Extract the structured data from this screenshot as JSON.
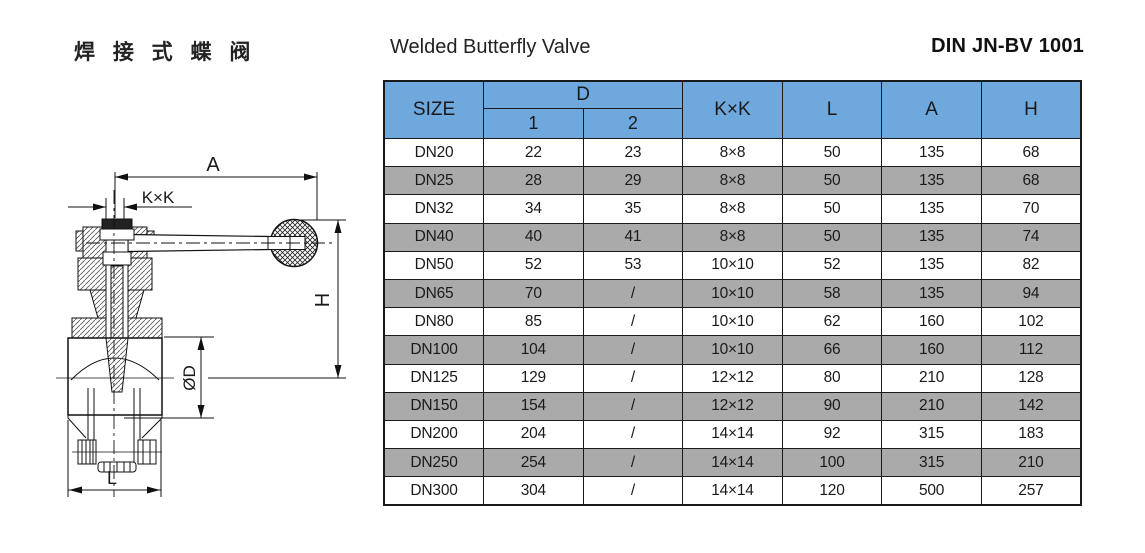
{
  "header": {
    "title_cn": "焊 接 式 蝶 阀",
    "title_en": "Welded Butterfly Valve",
    "model_code": "DIN JN-BV 1001"
  },
  "drawing": {
    "description": "welded-butterfly-valve-cross-section",
    "labels": {
      "a": "A",
      "kxk": "K×K",
      "h": "H",
      "od": "ØD",
      "l": "L"
    }
  },
  "table": {
    "header": {
      "size": "SIZE",
      "d": "D",
      "d1": "1",
      "d2": "2",
      "kxk": "K×K",
      "l": "L",
      "a": "A",
      "h": "H"
    },
    "columns": [
      "size",
      "d1",
      "d2",
      "kxk",
      "l",
      "a",
      "h"
    ],
    "rows": [
      {
        "size": "DN20",
        "d1": "22",
        "d2": "23",
        "kxk": "8×8",
        "l": "50",
        "a": "135",
        "h": "68"
      },
      {
        "size": "DN25",
        "d1": "28",
        "d2": "29",
        "kxk": "8×8",
        "l": "50",
        "a": "135",
        "h": "68"
      },
      {
        "size": "DN32",
        "d1": "34",
        "d2": "35",
        "kxk": "8×8",
        "l": "50",
        "a": "135",
        "h": "70"
      },
      {
        "size": "DN40",
        "d1": "40",
        "d2": "41",
        "kxk": "8×8",
        "l": "50",
        "a": "135",
        "h": "74"
      },
      {
        "size": "DN50",
        "d1": "52",
        "d2": "53",
        "kxk": "10×10",
        "l": "52",
        "a": "135",
        "h": "82"
      },
      {
        "size": "DN65",
        "d1": "70",
        "d2": "/",
        "kxk": "10×10",
        "l": "58",
        "a": "135",
        "h": "94"
      },
      {
        "size": "DN80",
        "d1": "85",
        "d2": "/",
        "kxk": "10×10",
        "l": "62",
        "a": "160",
        "h": "102"
      },
      {
        "size": "DN100",
        "d1": "104",
        "d2": "/",
        "kxk": "10×10",
        "l": "66",
        "a": "160",
        "h": "112"
      },
      {
        "size": "DN125",
        "d1": "129",
        "d2": "/",
        "kxk": "12×12",
        "l": "80",
        "a": "210",
        "h": "128"
      },
      {
        "size": "DN150",
        "d1": "154",
        "d2": "/",
        "kxk": "12×12",
        "l": "90",
        "a": "210",
        "h": "142"
      },
      {
        "size": "DN200",
        "d1": "204",
        "d2": "/",
        "kxk": "14×14",
        "l": "92",
        "a": "315",
        "h": "183"
      },
      {
        "size": "DN250",
        "d1": "254",
        "d2": "/",
        "kxk": "14×14",
        "l": "100",
        "a": "315",
        "h": "210"
      },
      {
        "size": "DN300",
        "d1": "304",
        "d2": "/",
        "kxk": "14×14",
        "l": "120",
        "a": "500",
        "h": "257"
      }
    ]
  },
  "colors": {
    "table_header_bg": "#6fa8dc",
    "table_alt_row_bg": "#aaaaaa",
    "table_border": "#1a1a1a",
    "line_work": "#111111"
  }
}
